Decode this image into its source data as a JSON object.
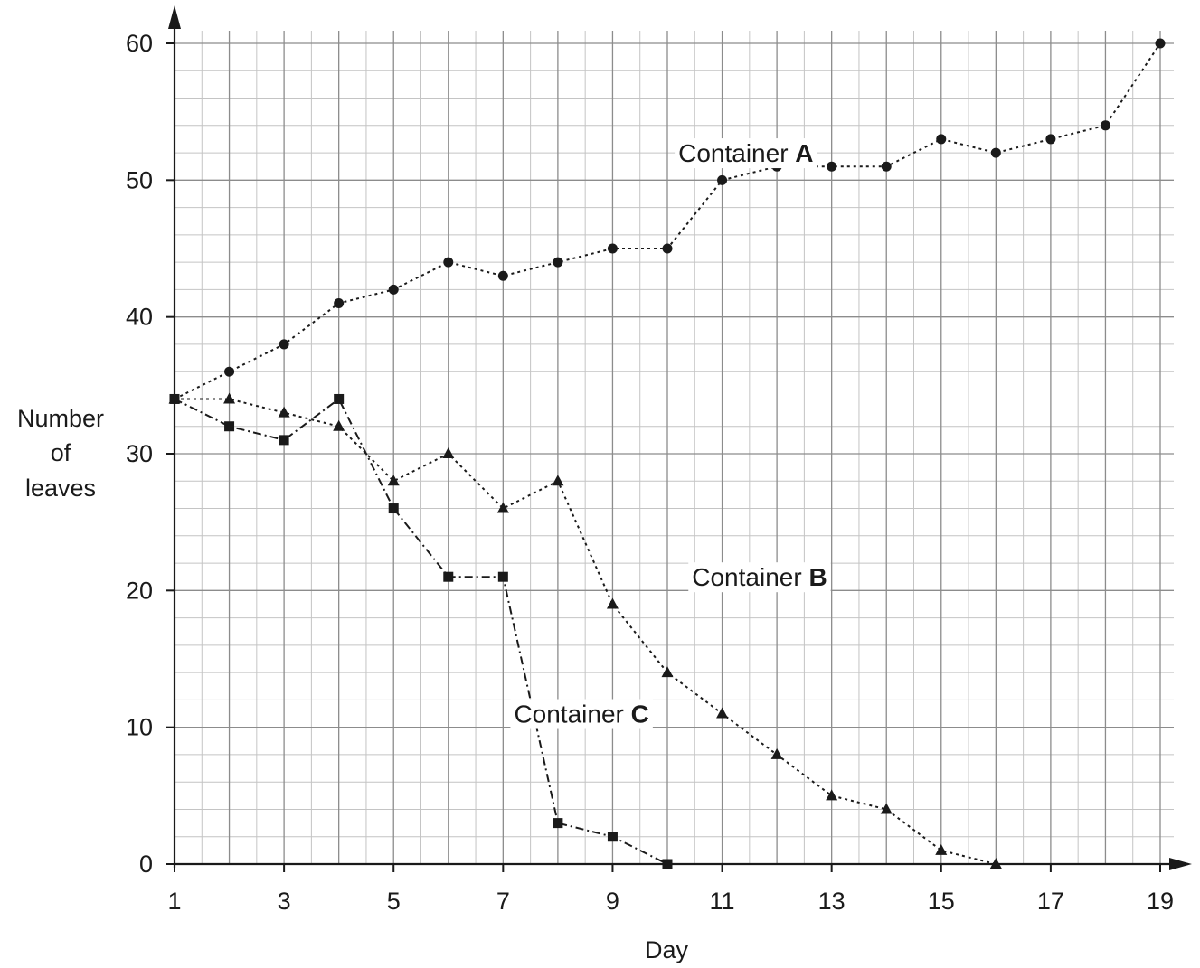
{
  "chart_data": {
    "type": "line",
    "xlabel": "Day",
    "ylabel": [
      "Number",
      "of",
      "leaves"
    ],
    "xlim": [
      1,
      19
    ],
    "ylim": [
      0,
      60
    ],
    "x_ticks": [
      1,
      3,
      5,
      7,
      9,
      11,
      13,
      15,
      17,
      19
    ],
    "y_ticks": [
      0,
      10,
      20,
      30,
      40,
      50,
      60
    ],
    "grid": true,
    "colors": {
      "major_grid": "#8c8c8c",
      "minor_grid": "#c4c4c4",
      "axis": "#1a1a1a",
      "series": "#1a1a1a"
    },
    "series": [
      {
        "name": "Container A",
        "label_prefix": "Container ",
        "label_letter": "A",
        "marker": "circle",
        "line_style": "dotted",
        "x": [
          1,
          2,
          3,
          4,
          5,
          6,
          7,
          8,
          9,
          10,
          11,
          12,
          13,
          14,
          15,
          16,
          17,
          18,
          19
        ],
        "values": [
          34,
          36,
          38,
          41,
          42,
          44,
          43,
          44,
          45,
          45,
          50,
          51,
          51,
          51,
          53,
          52,
          53,
          54,
          60
        ],
        "label_at": [
          10.2,
          52
        ]
      },
      {
        "name": "Container B",
        "label_prefix": "Container ",
        "label_letter": "B",
        "marker": "triangle",
        "line_style": "dotted",
        "x": [
          1,
          2,
          3,
          4,
          5,
          6,
          7,
          8,
          9,
          10,
          11,
          12,
          13,
          14,
          15,
          16
        ],
        "values": [
          34,
          34,
          33,
          32,
          28,
          30,
          26,
          28,
          19,
          14,
          11,
          8,
          5,
          4,
          1,
          0
        ],
        "label_at": [
          10.45,
          21
        ]
      },
      {
        "name": "Container C",
        "label_prefix": "Container ",
        "label_letter": "C",
        "marker": "square",
        "line_style": "dashdot",
        "x": [
          1,
          2,
          3,
          4,
          5,
          6,
          7,
          8,
          9,
          10
        ],
        "values": [
          34,
          32,
          31,
          34,
          26,
          21,
          21,
          3,
          2,
          0
        ],
        "label_at": [
          7.2,
          11
        ]
      }
    ]
  }
}
